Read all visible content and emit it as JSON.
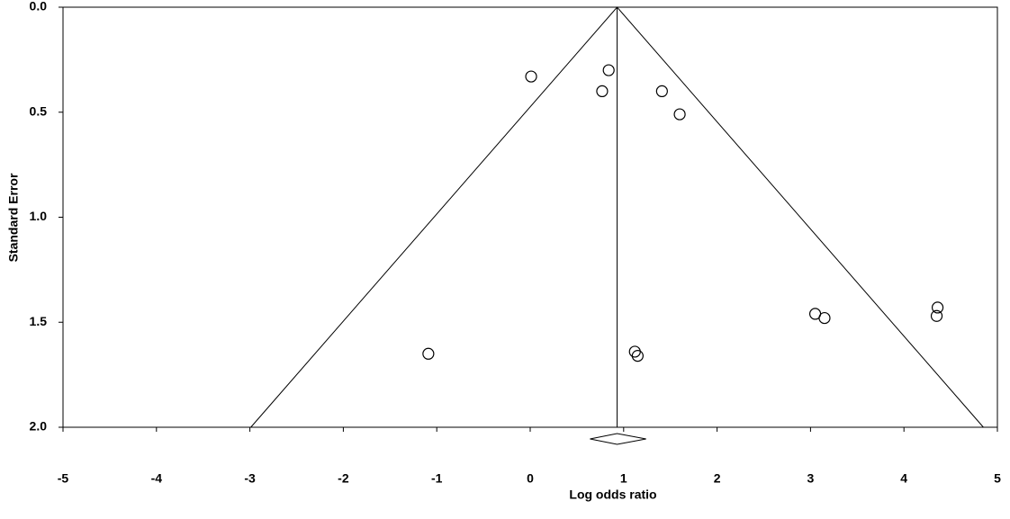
{
  "chart_data": {
    "type": "funnel",
    "x_label": "Log odds ratio",
    "y_label": "Standard Error",
    "xlim": [
      -5,
      5
    ],
    "xticks": [
      -5,
      -4,
      -3,
      -2,
      -1,
      0,
      1,
      2,
      3,
      4,
      5
    ],
    "ylim": [
      0,
      2
    ],
    "y_inverted": true,
    "yticks": [
      {
        "value": 0,
        "label": "0.0"
      },
      0.5,
      {
        "value": 1,
        "label": "1.0"
      },
      1.5,
      {
        "value": 2,
        "label": "2.0"
      }
    ],
    "x": [
      0.01,
      0.84,
      0.77,
      1.41,
      1.6,
      -1.09,
      1.12,
      1.15,
      3.05,
      3.15,
      4.36,
      4.35
    ],
    "values": [
      0.33,
      0.3,
      0.4,
      0.4,
      0.51,
      1.65,
      1.64,
      1.66,
      1.46,
      1.48,
      1.43,
      1.47
    ],
    "color": "#000000",
    "summary": {
      "estimate": 0.93,
      "ci": [
        0.64,
        1.24
      ]
    },
    "funnel_limits_at_bottom": [
      -2.99,
      4.85
    ]
  }
}
